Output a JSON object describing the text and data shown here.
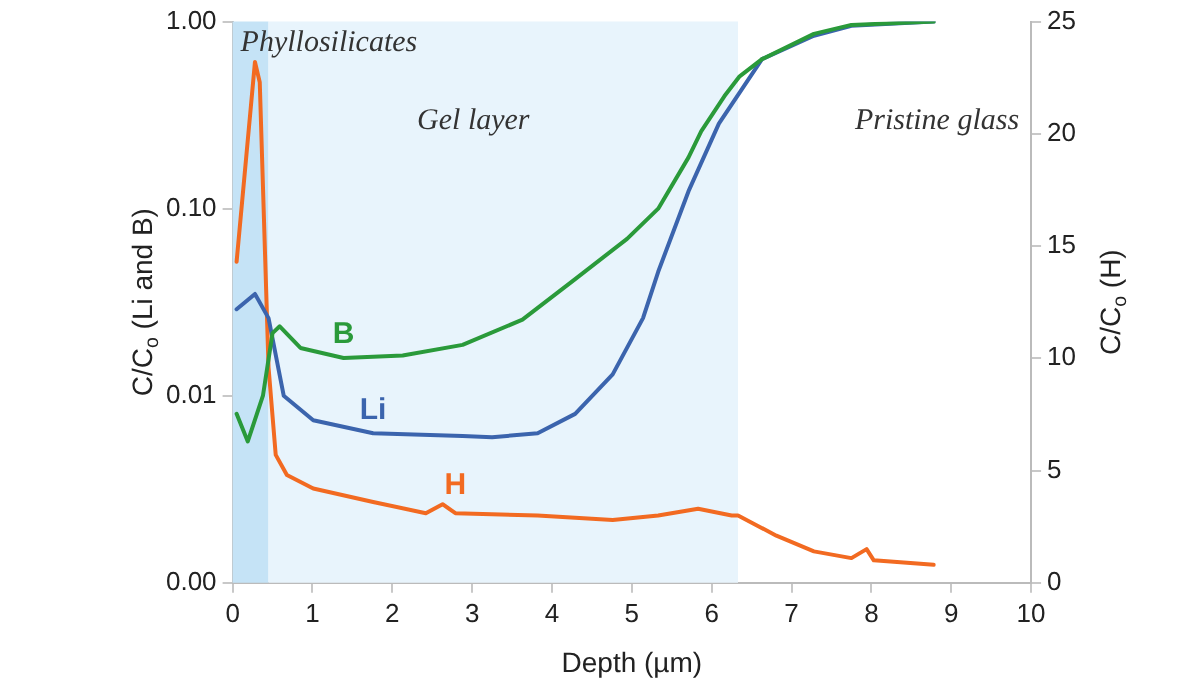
{
  "chart_data": {
    "type": "line",
    "xlabel": "Depth (µm)",
    "ylabel": "C/C$_{o}$ (Li and B)",
    "y2label": "C/C$_{o}$ (H)",
    "log": "y",
    "grid": false,
    "legend": false,
    "marker": "none",
    "line_style": "solid",
    "xlim": [
      0,
      10
    ],
    "xticks": [
      0,
      1,
      2,
      3,
      4,
      5,
      6,
      7,
      8,
      9,
      10
    ],
    "ylim": [
      0.001,
      1
    ],
    "yticks": [
      {
        "value": 0.001,
        "label": "0.00"
      },
      {
        "value": 0.01,
        "label": "0.01"
      },
      {
        "value": 0.1,
        "label": "0.10"
      },
      {
        "value": 1,
        "label": "1.00"
      }
    ],
    "y2lim": [
      0,
      25
    ],
    "y2ticks": [
      0,
      5,
      10,
      15,
      20,
      25
    ],
    "bands": [
      {
        "axis": "x",
        "from": 0,
        "to": 0.45,
        "label": "Phyllosilicates",
        "color": "#c5e3f6"
      },
      {
        "axis": "x",
        "from": 0.45,
        "to": 6.33,
        "label": "Gel layer",
        "color": "#e8f4fc"
      }
    ],
    "annotations": [
      "Pristine glass"
    ],
    "series": [
      {
        "name": "B",
        "color": "#2a9a3a",
        "x": [
          0.05,
          0.19,
          0.38,
          0.5,
          0.59,
          0.85,
          1.39,
          2.13,
          2.88,
          3.63,
          4.29,
          4.94,
          5.33,
          5.71,
          5.87,
          6.16,
          6.35,
          6.63,
          7.28,
          7.75,
          8.78
        ],
        "values": [
          0.008,
          0.0057,
          0.01,
          0.0216,
          0.0235,
          0.018,
          0.0159,
          0.0164,
          0.0187,
          0.0255,
          0.042,
          0.069,
          0.1,
          0.188,
          0.26,
          0.4,
          0.51,
          0.63,
          0.86,
          0.96,
          1.0
        ]
      },
      {
        "name": "Li",
        "color": "#3b64ad",
        "x": [
          0.05,
          0.28,
          0.45,
          0.64,
          1.01,
          1.76,
          2.88,
          3.25,
          3.82,
          4.29,
          4.76,
          5.14,
          5.33,
          5.71,
          6.09,
          6.63,
          7.28,
          7.75,
          8.78
        ],
        "values": [
          0.029,
          0.035,
          0.026,
          0.01,
          0.0074,
          0.0063,
          0.0061,
          0.006,
          0.0063,
          0.008,
          0.013,
          0.026,
          0.046,
          0.124,
          0.285,
          0.63,
          0.84,
          0.95,
          1.0
        ]
      },
      {
        "name": "H",
        "color": "#f26a21",
        "axis": "y2",
        "x": [
          0.05,
          0.28,
          0.34,
          0.45,
          0.54,
          0.68,
          1.01,
          1.76,
          2.42,
          2.63,
          2.79,
          3.82,
          4.76,
          5.33,
          5.83,
          6.25,
          6.33,
          6.81,
          7.28,
          7.75,
          7.94,
          8.03,
          8.78
        ],
        "values": [
          14.3,
          23.2,
          22.3,
          9.6,
          5.7,
          4.8,
          4.2,
          3.6,
          3.1,
          3.5,
          3.1,
          3.0,
          2.8,
          3.0,
          3.3,
          3.0,
          3.0,
          2.1,
          1.4,
          1.1,
          1.5,
          1.0,
          0.8
        ]
      }
    ]
  }
}
